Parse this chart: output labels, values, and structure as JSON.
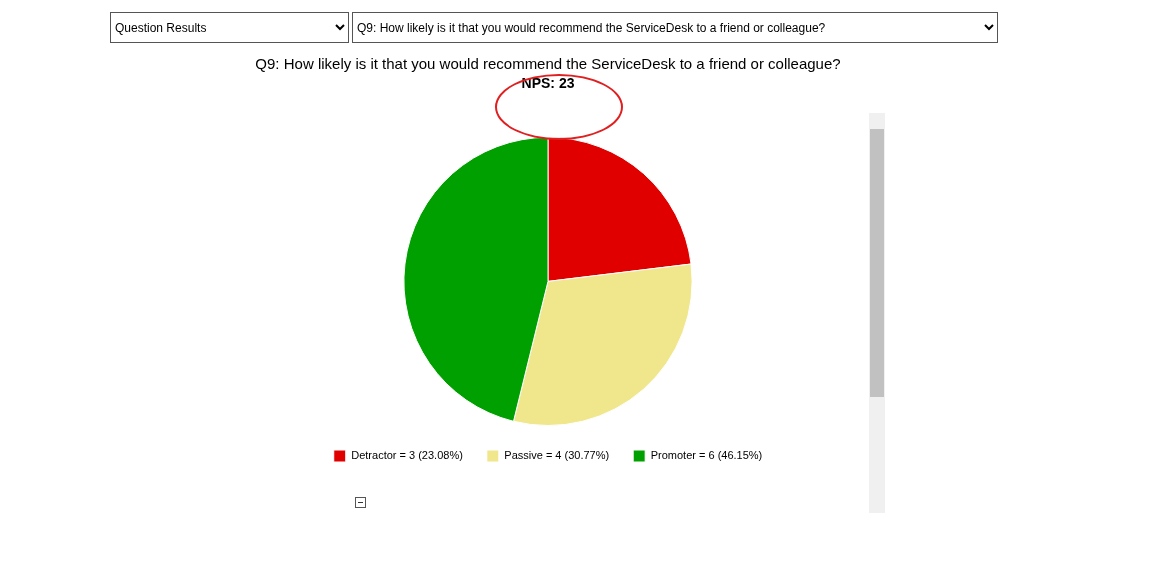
{
  "chart_data": {
    "type": "pie",
    "title": "Q9: How likely is it that you would recommend the ServiceDesk to a friend or colleague?",
    "subtitle": "NPS: 23",
    "categories": [
      "Detractor = 3 (23.08%)",
      "Passive = 4 (30.77%)",
      "Promoter = 6 (46.15%)"
    ],
    "values": [
      3,
      4,
      6
    ],
    "colors": [
      "#e00000",
      "#f0e68c",
      "#00a000"
    ],
    "legend": "bottom",
    "annotations": [
      "Question Results",
      "Q9: How likely is it that you would recommend the ServiceDesk to a friend or colleague?"
    ]
  }
}
